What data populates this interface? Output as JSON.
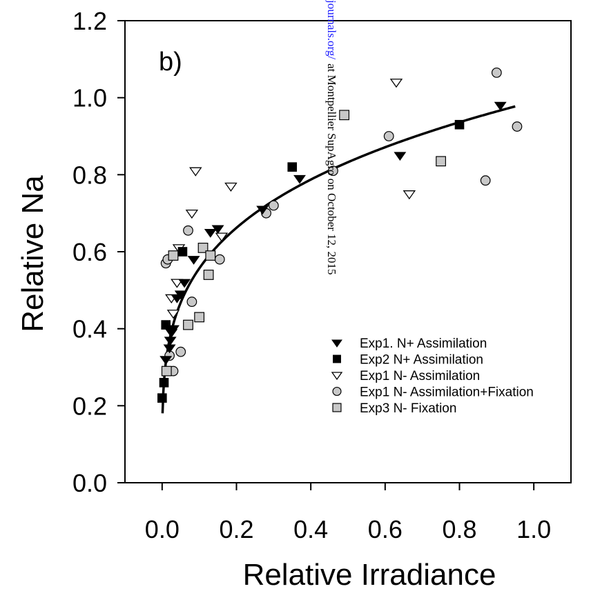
{
  "chart_data": {
    "type": "scatter",
    "panel_label": "b)",
    "xlabel": "Relative Irradiance",
    "ylabel": "Relative Na",
    "xlim": [
      -0.1,
      1.1
    ],
    "ylim": [
      0.0,
      1.2
    ],
    "x_ticks": [
      0.0,
      0.2,
      0.4,
      0.6,
      0.8,
      1.0
    ],
    "x_tick_labels": [
      "0.0",
      "0.2",
      "0.4",
      "0.6",
      "0.8",
      "1.0"
    ],
    "y_ticks": [
      0.0,
      0.2,
      0.4,
      0.6,
      0.8,
      1.0,
      1.2
    ],
    "y_tick_labels": [
      "0.0",
      "0.2",
      "0.4",
      "0.6",
      "0.8",
      "1.0",
      "1.2"
    ],
    "grid": false,
    "legend_position": "lower-right",
    "series": [
      {
        "name": "Exp1. N+ Assimilation",
        "marker": "triangle-down-filled",
        "points": [
          [
            0.01,
            0.32
          ],
          [
            0.02,
            0.35
          ],
          [
            0.022,
            0.37
          ],
          [
            0.025,
            0.39
          ],
          [
            0.03,
            0.4
          ],
          [
            0.04,
            0.48
          ],
          [
            0.05,
            0.49
          ],
          [
            0.06,
            0.52
          ],
          [
            0.085,
            0.58
          ],
          [
            0.13,
            0.65
          ],
          [
            0.15,
            0.66
          ],
          [
            0.27,
            0.71
          ],
          [
            0.37,
            0.79
          ],
          [
            0.64,
            0.85
          ],
          [
            0.91,
            0.98
          ]
        ]
      },
      {
        "name": "Exp2 N+ Assimilation",
        "marker": "square-filled",
        "points": [
          [
            0.0,
            0.22
          ],
          [
            0.005,
            0.26
          ],
          [
            0.01,
            0.41
          ],
          [
            0.055,
            0.6
          ],
          [
            0.35,
            0.82
          ],
          [
            0.8,
            0.93
          ]
        ]
      },
      {
        "name": "Exp1 N- Assimilation",
        "marker": "triangle-down-open",
        "points": [
          [
            0.025,
            0.48
          ],
          [
            0.03,
            0.44
          ],
          [
            0.04,
            0.52
          ],
          [
            0.045,
            0.61
          ],
          [
            0.08,
            0.7
          ],
          [
            0.09,
            0.81
          ],
          [
            0.16,
            0.64
          ],
          [
            0.185,
            0.77
          ],
          [
            0.63,
            1.04
          ],
          [
            0.665,
            0.75
          ]
        ]
      },
      {
        "name": "Exp1 N- Assimilation+Fixation",
        "marker": "circle-gray",
        "points": [
          [
            0.01,
            0.57
          ],
          [
            0.015,
            0.58
          ],
          [
            0.02,
            0.33
          ],
          [
            0.03,
            0.29
          ],
          [
            0.05,
            0.34
          ],
          [
            0.07,
            0.655
          ],
          [
            0.08,
            0.47
          ],
          [
            0.155,
            0.58
          ],
          [
            0.28,
            0.7
          ],
          [
            0.3,
            0.72
          ],
          [
            0.46,
            0.81
          ],
          [
            0.61,
            0.9
          ],
          [
            0.87,
            0.785
          ],
          [
            0.9,
            1.065
          ],
          [
            0.955,
            0.925
          ]
        ]
      },
      {
        "name": "Exp3 N- Fixation",
        "marker": "square-gray",
        "points": [
          [
            0.012,
            0.29
          ],
          [
            0.03,
            0.59
          ],
          [
            0.07,
            0.41
          ],
          [
            0.1,
            0.43
          ],
          [
            0.11,
            0.61
          ],
          [
            0.125,
            0.54
          ],
          [
            0.13,
            0.59
          ],
          [
            0.49,
            0.955
          ],
          [
            0.75,
            0.835
          ]
        ]
      }
    ],
    "fit_curve": {
      "x_range": [
        0.0,
        0.95
      ],
      "description": "power fit y = 0.99 * x^0.25"
    }
  },
  "watermark": {
    "link_text": "journals.org/",
    "tail_text": "at Montpellier SupAgro on October 12, 2015"
  },
  "colors": {
    "axis": "#000000",
    "filled_marker": "#000000",
    "gray_marker": "#c8c8c8",
    "watermark_link": "#1a1aff",
    "watermark_text": "#000000"
  }
}
